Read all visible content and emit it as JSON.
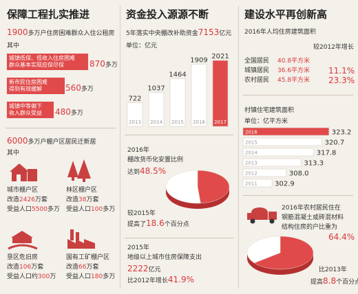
{
  "col1": {
    "title": "保障工程扎实推进",
    "headline_num": "1900",
    "headline_text": "多万户住房困难群众入住公租房",
    "sub_label": "其中",
    "boxes": [
      {
        "text1": "城镇低保、低收入住房困难",
        "text2": "群众基本实现应保尽保",
        "value": "870",
        "unit": "多万"
      },
      {
        "text1": "新市民住房困难",
        "text2": "得到有效缓解",
        "value": "560",
        "unit": "多万"
      },
      {
        "text1": "城镇中等偏下",
        "text2": "收入群众受益",
        "value": "480",
        "unit": "多万"
      }
    ],
    "section2_num": "6000",
    "section2_text": "多万户棚户区居民迁新居",
    "section2_sub": "其中",
    "items": [
      {
        "name": "城市棚户区",
        "l1a": "改造",
        "l1v": "2426",
        "l1u": "万套",
        "l2a": "受益人口",
        "l2v": "5500",
        "l2u": "多万"
      },
      {
        "name": "林区棚户区",
        "l1a": "改造",
        "l1v": "38",
        "l1u": "万套",
        "l2a": "受益人口",
        "l2v": "100",
        "l2u": "多万"
      },
      {
        "name": "垦区危旧房",
        "l1a": "改造",
        "l1v": "106",
        "l1u": "万套",
        "l2a": "受益人口约",
        "l2v": "300",
        "l2u": "万"
      },
      {
        "name": "国有工矿棚户区",
        "l1a": "改造",
        "l1v": "66",
        "l1u": "万套",
        "l2a": "受益人口",
        "l2v": "180",
        "l2u": "多万"
      }
    ]
  },
  "col2": {
    "title": "资金投入源源不断",
    "subtitle_pre": "5年落实中央棚改补助资金",
    "subtitle_num": "7153",
    "subtitle_unit": "亿元",
    "unit_label": "单位：亿元",
    "pie1": {
      "l1": "2016年",
      "l2": "棚改货币化安置比例",
      "l3a": "达到",
      "l3v": "48.5%",
      "value": 48.5,
      "n1": "较2015年",
      "n2a": "提高了",
      "n2v": "18.6",
      "n2u": "个百分点"
    },
    "section3": {
      "l1": "2015年",
      "l2": "地级以上城市住房保障支出",
      "l3v": "2222",
      "l3u": "亿元",
      "l4a": "比2012年增长",
      "l4v": "41.9%"
    }
  },
  "col3": {
    "title": "建设水平再创新高",
    "area_title": "2016年人均住房建筑面积",
    "compare_header": "较2012年增长",
    "rows": [
      {
        "name": "全国居民",
        "value": "40.8",
        "unit": "平方米",
        "growth": "11.1%"
      },
      {
        "name": "城镇居民",
        "value": "36.6",
        "unit": "平方米",
        "growth": ""
      },
      {
        "name": "农村居民",
        "value": "45.8",
        "unit": "平方米",
        "growth": "23.3%"
      }
    ],
    "bar_title": "村镇住宅建筑面积",
    "bar_unit": "单位：亿平方米",
    "pie2": {
      "l1": "2016年农村居民住在",
      "l2": "钢筋混凝土或砖混材料",
      "l3": "结构住房的户比重为",
      "v": "64.4%",
      "value": 64.4,
      "n1": "比2013年",
      "n2a": "提高",
      "n2v": "8.8",
      "n2u": "个百分点"
    }
  },
  "chart_data": [
    {
      "type": "bar",
      "title": "5年落实中央棚改补助资金7153亿元",
      "ylabel": "单位：亿元",
      "categories": [
        "2013",
        "2014",
        "2015",
        "2016",
        "2017"
      ],
      "values": [
        722,
        1037,
        1464,
        1909,
        2021
      ],
      "highlight_color": "#e04a4a",
      "bar_color": "#ffffff"
    },
    {
      "type": "bar",
      "orientation": "horizontal",
      "title": "村镇住宅建筑面积",
      "ylabel": "单位：亿平方米",
      "categories": [
        "2016",
        "2015",
        "2014",
        "2013",
        "2012",
        "2011"
      ],
      "values": [
        323.2,
        320.7,
        317.8,
        313.3,
        308.0,
        302.9
      ],
      "labels": [
        "323.2",
        "320.7",
        "317.8",
        "313.3",
        "308.0",
        "302.9"
      ],
      "highlight_color": "#e04a4a",
      "bar_color": "#ffffff"
    },
    {
      "type": "pie",
      "title": "棚改货币化安置比例",
      "values": [
        48.5,
        51.5
      ],
      "colors": [
        "#e04a4a",
        "#ffffff"
      ]
    },
    {
      "type": "pie",
      "title": "结构住房的户比重",
      "values": [
        64.4,
        35.6
      ],
      "colors": [
        "#e04a4a",
        "#ffffff"
      ]
    }
  ]
}
